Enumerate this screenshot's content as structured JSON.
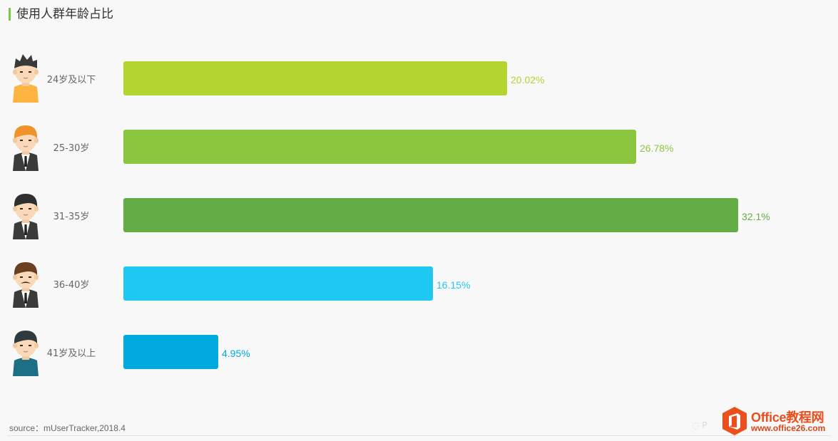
{
  "title": "使用人群年龄占比",
  "source": "source：mUserTracker,2018.4",
  "watermark": {
    "brand": "Office教程网",
    "url": "www.office26.com"
  },
  "colors": {
    "accent": "#7ac943",
    "background": "#f8f8f8",
    "label_text": "#666666"
  },
  "chart_data": {
    "type": "bar",
    "orientation": "horizontal",
    "categories": [
      "24岁及以下",
      "25-30岁",
      "31-35岁",
      "36-40岁",
      "41岁及以上"
    ],
    "values": [
      20.02,
      26.78,
      32.1,
      16.15,
      4.95
    ],
    "value_labels": [
      "20.02%",
      "26.78%",
      "32.1%",
      "16.15%",
      "4.95%"
    ],
    "bar_colors": [
      "#b4d430",
      "#8cc63f",
      "#63ad46",
      "#1fc8f2",
      "#00a9de"
    ],
    "avatars": [
      "avatar-young-yellow-shirt-icon",
      "avatar-orange-hair-suit-icon",
      "avatar-dark-hair-suit-icon",
      "avatar-mustache-suit-icon",
      "avatar-older-teal-shirt-icon"
    ],
    "xlim": [
      0,
      32.1
    ],
    "grid": false,
    "legend": "none",
    "title": "使用人群年龄占比",
    "xlabel": "",
    "ylabel": ""
  }
}
